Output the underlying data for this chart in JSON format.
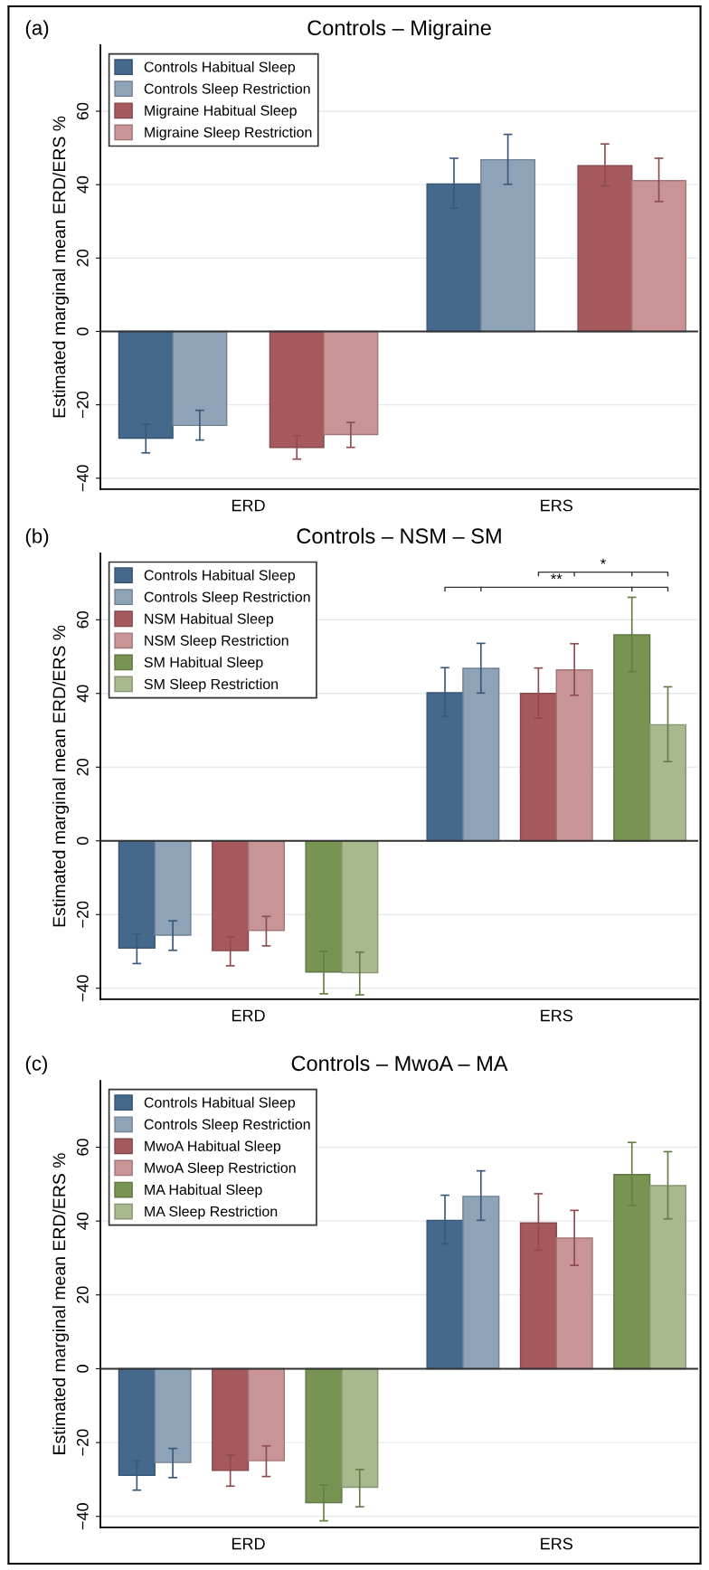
{
  "chart_data": [
    {
      "type": "bar",
      "title": "Controls – Migraine",
      "ylabel": "Estimated marginal mean ERD/ERS %",
      "categories": [
        "ERD",
        "ERS"
      ],
      "annotations": [
        "(a)"
      ],
      "ylim": [
        -43,
        78
      ],
      "yticks": [
        -40,
        -20,
        0,
        20,
        40,
        60
      ],
      "grid": "y",
      "legend": "top left",
      "ref_lines": [
        {
          "axis": "y",
          "value": 0,
          "color": "#333333"
        }
      ],
      "series": [
        {
          "name": "Controls Habitual Sleep",
          "color": "#44698d",
          "values": [
            -29.1,
            40.2
          ],
          "errors": [
            [
              -33.1,
              -25.3
            ],
            [
              33.6,
              47.2
            ]
          ]
        },
        {
          "name": "Controls Sleep Restriction",
          "color": "#8fa3b8",
          "values": [
            -25.6,
            46.8
          ],
          "errors": [
            [
              -29.6,
              -21.5
            ],
            [
              40.1,
              53.7
            ]
          ]
        },
        {
          "name": "Migraine Habitual Sleep",
          "color": "#a65a5e",
          "values": [
            -31.6,
            45.2
          ],
          "errors": [
            [
              -34.8,
              -28.4
            ],
            [
              39.6,
              51.1
            ]
          ]
        },
        {
          "name": "Migraine Sleep Restriction",
          "color": "#c99496",
          "values": [
            -28.1,
            41.1
          ],
          "errors": [
            [
              -31.6,
              -24.8
            ],
            [
              35.4,
              47.2
            ]
          ]
        }
      ]
    },
    {
      "type": "bar",
      "title": "Controls – NSM – SM",
      "ylabel": "Estimated marginal mean ERD/ERS %",
      "categories": [
        "ERD",
        "ERS"
      ],
      "annotations": [
        "(b)",
        "**",
        "*"
      ],
      "ylim": [
        -43,
        78
      ],
      "yticks": [
        -40,
        -20,
        0,
        20,
        40,
        60
      ],
      "grid": "y",
      "legend": "top left",
      "ref_lines": [
        {
          "axis": "y",
          "value": 0,
          "color": "#333333"
        }
      ],
      "series": [
        {
          "name": "Controls Habitual Sleep",
          "color": "#44698d",
          "values": [
            -29.1,
            40.2
          ],
          "errors": [
            [
              -33.3,
              -25.3
            ],
            [
              33.8,
              47.0
            ]
          ]
        },
        {
          "name": "Controls Sleep Restriction",
          "color": "#8fa3b8",
          "values": [
            -25.6,
            46.8
          ],
          "errors": [
            [
              -29.7,
              -21.7
            ],
            [
              40.1,
              53.6
            ]
          ]
        },
        {
          "name": "NSM Habitual Sleep",
          "color": "#a65a5e",
          "values": [
            -29.8,
            40.0
          ],
          "errors": [
            [
              -33.9,
              -26.1
            ],
            [
              33.3,
              46.9
            ]
          ]
        },
        {
          "name": "NSM Sleep Restriction",
          "color": "#c99496",
          "values": [
            -24.3,
            46.4
          ],
          "errors": [
            [
              -28.5,
              -20.5
            ],
            [
              39.5,
              53.5
            ]
          ]
        },
        {
          "name": "SM Habitual Sleep",
          "color": "#789452",
          "values": [
            -35.6,
            55.9
          ],
          "errors": [
            [
              -41.5,
              -30.0
            ],
            [
              45.9,
              66.1
            ]
          ]
        },
        {
          "name": "SM Sleep Restriction",
          "color": "#a8b98e",
          "values": [
            -35.8,
            31.5
          ],
          "errors": [
            [
              -41.8,
              -30.2
            ],
            [
              21.5,
              41.8
            ]
          ]
        }
      ]
    },
    {
      "type": "bar",
      "title": "Controls – MwoA – MA",
      "ylabel": "Estimated marginal mean ERD/ERS %",
      "categories": [
        "ERD",
        "ERS"
      ],
      "annotations": [
        "(c)"
      ],
      "ylim": [
        -43,
        78
      ],
      "yticks": [
        -40,
        -20,
        0,
        20,
        40,
        60
      ],
      "grid": "y",
      "legend": "top left",
      "ref_lines": [
        {
          "axis": "y",
          "value": 0,
          "color": "#333333"
        }
      ],
      "series": [
        {
          "name": "Controls Habitual Sleep",
          "color": "#44698d",
          "values": [
            -28.9,
            40.2
          ],
          "errors": [
            [
              -32.9,
              -25.0
            ],
            [
              33.8,
              47.0
            ]
          ]
        },
        {
          "name": "Controls Sleep Restriction",
          "color": "#8fa3b8",
          "values": [
            -25.4,
            46.7
          ],
          "errors": [
            [
              -29.5,
              -21.6
            ],
            [
              40.2,
              53.6
            ]
          ]
        },
        {
          "name": "MwoA Habitual Sleep",
          "color": "#a65a5e",
          "values": [
            -27.5,
            39.5
          ],
          "errors": [
            [
              -31.8,
              -23.4
            ],
            [
              32.1,
              47.4
            ]
          ]
        },
        {
          "name": "MwoA Sleep Restriction",
          "color": "#c99496",
          "values": [
            -24.9,
            35.4
          ],
          "errors": [
            [
              -29.2,
              -20.9
            ],
            [
              28.0,
              42.9
            ]
          ]
        },
        {
          "name": "MA Habitual Sleep",
          "color": "#789452",
          "values": [
            -36.3,
            52.6
          ],
          "errors": [
            [
              -41.2,
              -31.5
            ],
            [
              44.2,
              61.3
            ]
          ]
        },
        {
          "name": "MA Sleep Restriction",
          "color": "#a8b98e",
          "values": [
            -32.1,
            49.6
          ],
          "errors": [
            [
              -37.4,
              -27.3
            ],
            [
              40.6,
              58.8
            ]
          ]
        }
      ]
    }
  ]
}
